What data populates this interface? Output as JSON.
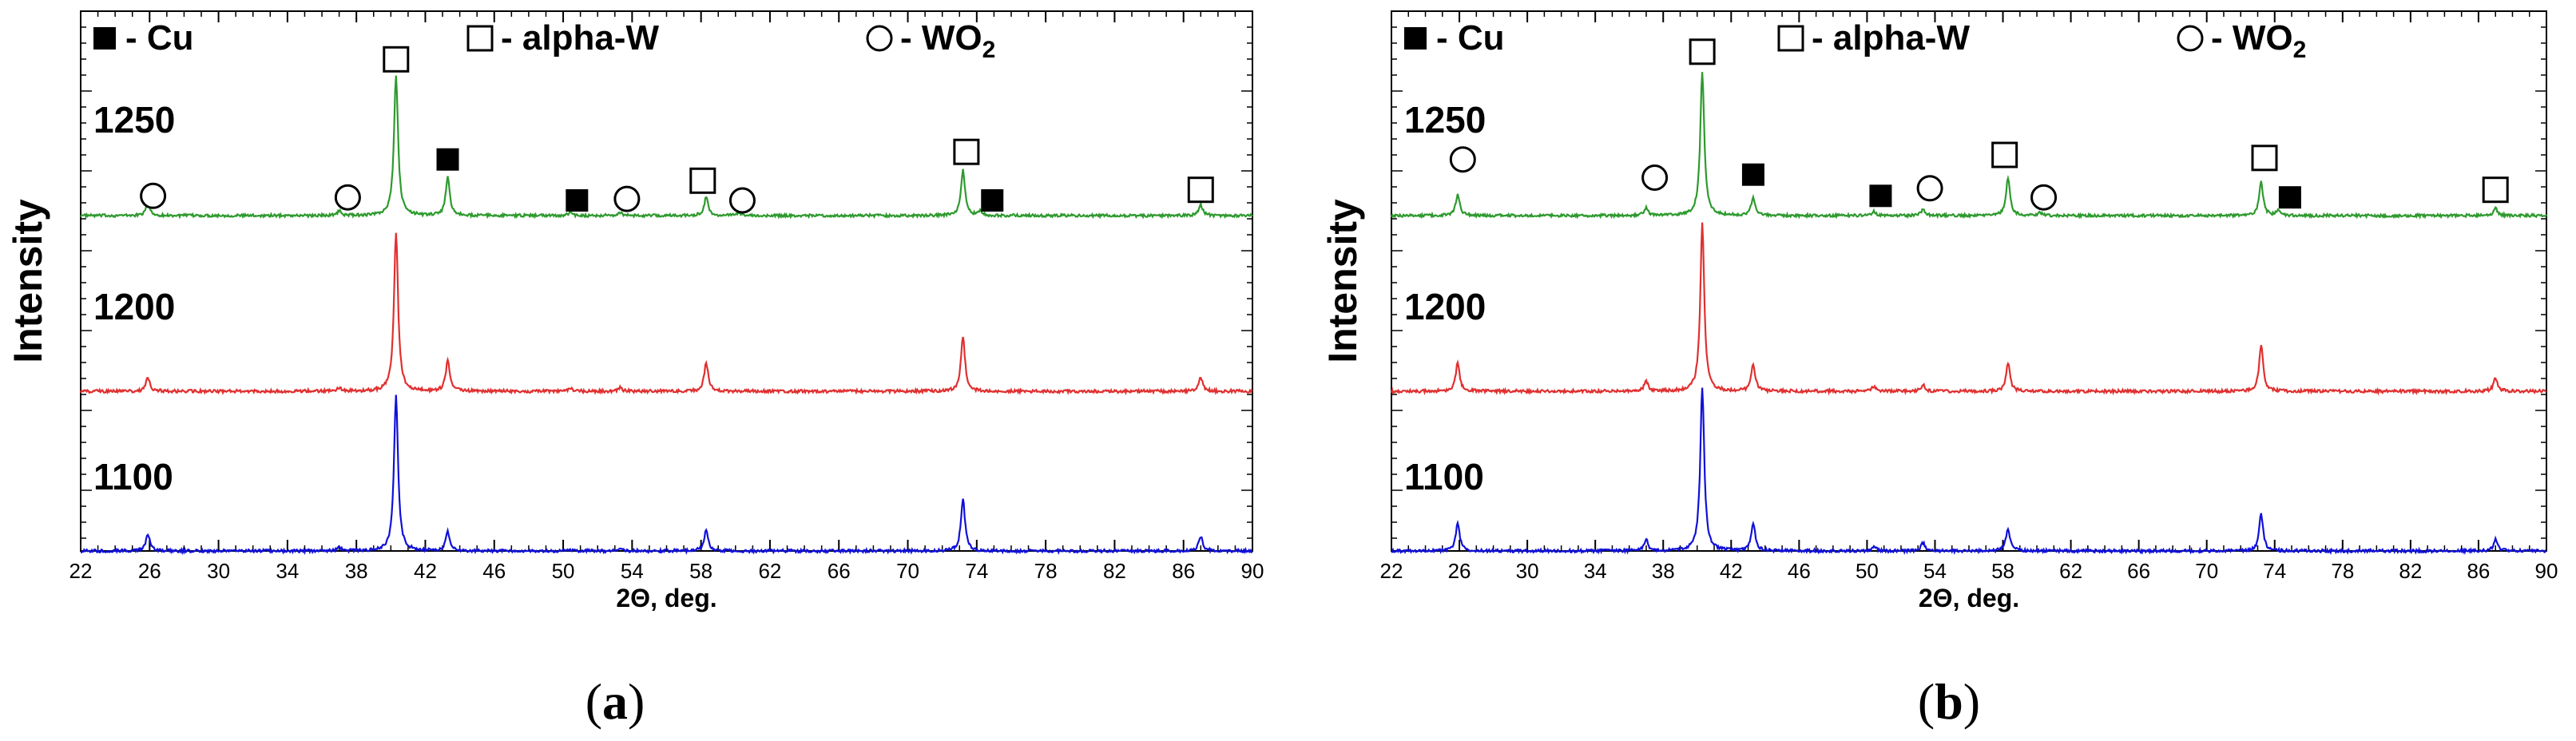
{
  "colors": {
    "temp_1250": "#2e9a2e",
    "temp_1200": "#e03030",
    "temp_1100": "#1010d8",
    "axis": "#000000",
    "background": "#ffffff"
  },
  "legend": [
    {
      "symbol": "filled-square",
      "label": "- Cu"
    },
    {
      "symbol": "open-square",
      "label": "- alpha-W"
    },
    {
      "symbol": "open-circle",
      "label": "- WO",
      "subscript": "2"
    }
  ],
  "chart_data": [
    {
      "type": "line",
      "panel_label": "a",
      "caption_open": "(",
      "caption_close": ")",
      "xlabel": "2Θ, deg.",
      "ylabel": "Intensity",
      "xlim": [
        22,
        90
      ],
      "x_ticks": [
        22,
        26,
        30,
        34,
        38,
        42,
        46,
        50,
        54,
        58,
        62,
        66,
        70,
        74,
        78,
        82,
        86,
        90
      ],
      "tick_labels": [
        "22",
        "26",
        "30",
        "34",
        "38",
        "42",
        "46",
        "50",
        "54",
        "58",
        "62",
        "66",
        "70",
        "74",
        "78",
        "82",
        "86",
        "90"
      ],
      "series": [
        {
          "name": "1250",
          "color": "#2e9a2e",
          "peaks": [
            [
              25.9,
              0.08
            ],
            [
              37.0,
              0.03
            ],
            [
              40.3,
              0.92
            ],
            [
              43.3,
              0.25
            ],
            [
              50.4,
              0.02
            ],
            [
              53.3,
              0.02
            ],
            [
              58.3,
              0.12
            ],
            [
              60.2,
              0.02
            ],
            [
              73.2,
              0.3
            ],
            [
              74.2,
              0.03
            ],
            [
              87.0,
              0.07
            ]
          ]
        },
        {
          "name": "1200",
          "color": "#e03030",
          "peaks": [
            [
              25.9,
              0.08
            ],
            [
              37.0,
              0.02
            ],
            [
              40.3,
              0.95
            ],
            [
              43.3,
              0.18
            ],
            [
              50.4,
              0.02
            ],
            [
              53.3,
              0.02
            ],
            [
              58.3,
              0.17
            ],
            [
              73.2,
              0.33
            ],
            [
              87.0,
              0.08
            ]
          ]
        },
        {
          "name": "1100",
          "color": "#1010d8",
          "peaks": [
            [
              25.9,
              0.1
            ],
            [
              37.0,
              0.02
            ],
            [
              40.3,
              0.95
            ],
            [
              43.3,
              0.12
            ],
            [
              50.4,
              0.01
            ],
            [
              53.3,
              0.01
            ],
            [
              58.3,
              0.13
            ],
            [
              73.2,
              0.32
            ],
            [
              87.0,
              0.09
            ]
          ]
        }
      ],
      "markers": [
        {
          "symbol": "open-circle",
          "x": 26.2,
          "y": 0.13
        },
        {
          "symbol": "open-circle",
          "x": 37.5,
          "y": 0.12
        },
        {
          "symbol": "open-square",
          "x": 40.3,
          "y": 1.03
        },
        {
          "symbol": "filled-square",
          "x": 43.3,
          "y": 0.37
        },
        {
          "symbol": "filled-square",
          "x": 50.8,
          "y": 0.1
        },
        {
          "symbol": "open-circle",
          "x": 53.7,
          "y": 0.11
        },
        {
          "symbol": "open-square",
          "x": 58.1,
          "y": 0.23
        },
        {
          "symbol": "open-circle",
          "x": 60.4,
          "y": 0.1
        },
        {
          "symbol": "open-square",
          "x": 73.4,
          "y": 0.42
        },
        {
          "symbol": "filled-square",
          "x": 74.9,
          "y": 0.1
        },
        {
          "symbol": "open-square",
          "x": 87.0,
          "y": 0.17
        }
      ]
    },
    {
      "type": "line",
      "panel_label": "b",
      "caption_open": "(",
      "caption_close": ")",
      "xlabel": "2Θ, deg.",
      "ylabel": "Intensity",
      "xlim": [
        22,
        90
      ],
      "x_ticks": [
        22,
        26,
        30,
        34,
        38,
        42,
        46,
        50,
        54,
        58,
        62,
        66,
        70,
        74,
        78,
        82,
        86,
        90
      ],
      "tick_labels": [
        "22",
        "26",
        "30",
        "34",
        "38",
        "42",
        "46",
        "50",
        "54",
        "58",
        "62",
        "66",
        "70",
        "74",
        "78",
        "82",
        "86",
        "90"
      ],
      "series": [
        {
          "name": "1250",
          "color": "#2e9a2e",
          "peaks": [
            [
              25.9,
              0.14
            ],
            [
              37.0,
              0.05
            ],
            [
              40.3,
              0.95
            ],
            [
              43.3,
              0.12
            ],
            [
              50.4,
              0.03
            ],
            [
              53.3,
              0.04
            ],
            [
              58.3,
              0.25
            ],
            [
              60.2,
              0.02
            ],
            [
              73.2,
              0.22
            ],
            [
              74.2,
              0.03
            ],
            [
              87.0,
              0.05
            ]
          ]
        },
        {
          "name": "1200",
          "color": "#e03030",
          "peaks": [
            [
              25.9,
              0.17
            ],
            [
              37.0,
              0.06
            ],
            [
              40.3,
              1.0
            ],
            [
              43.3,
              0.16
            ],
            [
              50.4,
              0.03
            ],
            [
              53.3,
              0.04
            ],
            [
              58.3,
              0.17
            ],
            [
              73.2,
              0.28
            ],
            [
              87.0,
              0.08
            ]
          ]
        },
        {
          "name": "1100",
          "color": "#1010d8",
          "peaks": [
            [
              25.9,
              0.17
            ],
            [
              37.0,
              0.07
            ],
            [
              40.3,
              1.0
            ],
            [
              43.3,
              0.17
            ],
            [
              50.4,
              0.03
            ],
            [
              53.3,
              0.05
            ],
            [
              58.3,
              0.14
            ],
            [
              73.2,
              0.23
            ],
            [
              87.0,
              0.07
            ]
          ]
        }
      ],
      "markers": [
        {
          "symbol": "open-circle",
          "x": 26.2,
          "y": 0.37
        },
        {
          "symbol": "open-circle",
          "x": 37.5,
          "y": 0.25
        },
        {
          "symbol": "open-square",
          "x": 40.3,
          "y": 1.08
        },
        {
          "symbol": "filled-square",
          "x": 43.3,
          "y": 0.27
        },
        {
          "symbol": "filled-square",
          "x": 50.8,
          "y": 0.13
        },
        {
          "symbol": "open-circle",
          "x": 53.7,
          "y": 0.18
        },
        {
          "symbol": "open-square",
          "x": 58.1,
          "y": 0.4
        },
        {
          "symbol": "open-circle",
          "x": 60.4,
          "y": 0.12
        },
        {
          "symbol": "open-square",
          "x": 73.4,
          "y": 0.38
        },
        {
          "symbol": "filled-square",
          "x": 74.9,
          "y": 0.12
        },
        {
          "symbol": "open-square",
          "x": 87.0,
          "y": 0.17
        }
      ]
    }
  ]
}
